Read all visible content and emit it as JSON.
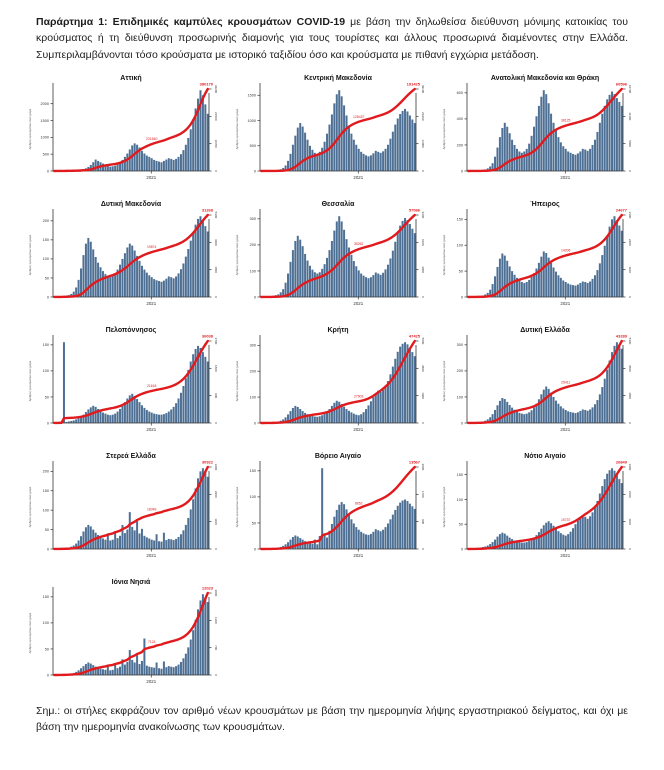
{
  "header": {
    "bold": "Παράρτημα 1:  Επιδημικές καμπύλες κρουσμάτων COVID-19",
    "text": " με βάση την δηλωθείσα διεύθυνση μόνιμης κατοικίας του κρούσματος ή τη διεύθυνση προσωρινής διαμονής για τους τουρίστες και άλλους προσωρινά διαμένοντες στην Ελλάδα.  Συμπεριλαμβάνονται τόσο κρούσματα με ιστορικό ταξιδίου όσο και κρούσματα με πιθανή εγχώρια μετάδοση."
  },
  "footnote": {
    "label": "Σημ.:",
    "text": " οι στήλες εκφράζουν τον αριθμό νέων κρουσμάτων με βάση την ημερομηνία λήψης εργαστηριακού δείγματος, και όχι με βάση την ημερομηνία ανακοίνωσης των κρουσμάτων."
  },
  "colors": {
    "bar": "#4e7095",
    "line": "#e11a1d",
    "axis": "#333333",
    "tick_text": "#333333"
  },
  "axis": {
    "x_tick": "2021",
    "y_title": "Αριθμός κρουσμάτων ανά ημέρα"
  },
  "chart_data": [
    {
      "type": "bar+line",
      "title": "Αττική",
      "xlabel": "2021",
      "ylabel": "Αριθμός κρουσμάτων ανά ημέρα",
      "total_label": "380170",
      "mid_label": "231540",
      "y_ticks": [
        0,
        500,
        1000,
        1500,
        2000
      ],
      "bars": [
        5,
        8,
        6,
        10,
        12,
        9,
        14,
        18,
        15,
        20,
        30,
        45,
        60,
        80,
        120,
        180,
        260,
        340,
        300,
        260,
        220,
        180,
        150,
        130,
        140,
        160,
        200,
        260,
        330,
        420,
        520,
        640,
        760,
        820,
        780,
        700,
        600,
        520,
        460,
        420,
        380,
        330,
        300,
        280,
        260,
        300,
        340,
        380,
        360,
        330,
        360,
        420,
        500,
        620,
        780,
        980,
        1240,
        1540,
        1860,
        2150,
        2400,
        2250,
        1980,
        1700
      ]
    },
    {
      "type": "bar+line",
      "title": "Κεντρική Μακεδονία",
      "xlabel": "2021",
      "total_label": "191425",
      "mid_label": "128437",
      "y_ticks": [
        0,
        500,
        1000,
        1500
      ],
      "bars": [
        3,
        5,
        4,
        6,
        8,
        10,
        14,
        20,
        35,
        60,
        110,
        200,
        340,
        520,
        700,
        860,
        950,
        880,
        760,
        620,
        500,
        420,
        360,
        340,
        380,
        460,
        580,
        740,
        920,
        1120,
        1340,
        1520,
        1600,
        1480,
        1300,
        1100,
        900,
        740,
        620,
        520,
        440,
        380,
        340,
        310,
        290,
        310,
        350,
        400,
        380,
        360,
        390,
        440,
        520,
        640,
        780,
        920,
        1040,
        1130,
        1190,
        1230,
        1180,
        1100,
        1020,
        950
      ]
    },
    {
      "type": "bar+line",
      "title": "Ανατολική Μακεδονία και Θράκη",
      "xlabel": "2021",
      "total_label": "60596",
      "mid_label": "38125",
      "y_ticks": [
        0,
        200,
        400,
        600
      ],
      "bars": [
        2,
        3,
        2,
        4,
        5,
        6,
        8,
        12,
        20,
        35,
        60,
        110,
        180,
        260,
        330,
        370,
        340,
        290,
        240,
        200,
        170,
        150,
        140,
        150,
        170,
        210,
        270,
        340,
        420,
        500,
        570,
        620,
        590,
        520,
        440,
        370,
        310,
        260,
        220,
        190,
        170,
        150,
        140,
        130,
        125,
        135,
        150,
        170,
        165,
        155,
        170,
        200,
        240,
        300,
        370,
        440,
        500,
        550,
        585,
        610,
        590,
        560,
        530,
        500
      ]
    },
    {
      "type": "bar+line",
      "title": "Δυτική Μακεδονία",
      "xlabel": "2021",
      "total_label": "31268",
      "mid_label": "19874",
      "y_ticks": [
        0,
        50,
        100,
        150,
        200
      ],
      "bars": [
        1,
        1,
        2,
        2,
        3,
        4,
        5,
        8,
        14,
        25,
        45,
        75,
        110,
        140,
        155,
        145,
        125,
        105,
        90,
        78,
        68,
        60,
        55,
        52,
        55,
        62,
        72,
        85,
        100,
        115,
        130,
        140,
        135,
        122,
        108,
        95,
        82,
        72,
        64,
        57,
        52,
        47,
        44,
        42,
        40,
        43,
        48,
        54,
        52,
        49,
        54,
        62,
        73,
        88,
        106,
        126,
        148,
        170,
        190,
        205,
        212,
        200,
        186,
        172
      ]
    },
    {
      "type": "bar+line",
      "title": "Θεσσαλία",
      "xlabel": "2021",
      "total_label": "57086",
      "mid_label": "35262",
      "y_ticks": [
        0,
        100,
        200,
        300
      ],
      "bars": [
        1,
        2,
        2,
        3,
        4,
        5,
        7,
        10,
        18,
        30,
        55,
        90,
        135,
        180,
        215,
        235,
        220,
        195,
        165,
        140,
        120,
        105,
        95,
        90,
        95,
        108,
        126,
        150,
        180,
        215,
        255,
        290,
        310,
        290,
        258,
        222,
        190,
        162,
        138,
        118,
        102,
        90,
        82,
        76,
        72,
        76,
        84,
        94,
        90,
        85,
        93,
        106,
        124,
        148,
        178,
        212,
        246,
        274,
        292,
        303,
        295,
        280,
        262,
        245
      ]
    },
    {
      "type": "bar+line",
      "title": "Ήπειρος",
      "xlabel": "2021",
      "total_label": "24677",
      "mid_label": "14206",
      "y_ticks": [
        0,
        50,
        100,
        150
      ],
      "bars": [
        0,
        1,
        1,
        1,
        2,
        2,
        3,
        5,
        8,
        14,
        25,
        40,
        58,
        74,
        84,
        80,
        70,
        59,
        50,
        43,
        37,
        32,
        29,
        27,
        29,
        33,
        39,
        46,
        55,
        66,
        78,
        88,
        85,
        76,
        66,
        57,
        49,
        42,
        37,
        32,
        29,
        26,
        24,
        23,
        22,
        24,
        27,
        30,
        29,
        27,
        30,
        35,
        42,
        52,
        65,
        81,
        99,
        118,
        136,
        150,
        156,
        148,
        138,
        128
      ]
    },
    {
      "type": "bar+line",
      "title": "Πελοπόννησος",
      "xlabel": "2021",
      "total_label": "36038",
      "mid_label": "21618",
      "y_ticks": [
        0,
        50,
        100,
        150
      ],
      "bars": [
        1,
        1,
        2,
        3,
        155,
        2,
        3,
        4,
        5,
        7,
        9,
        12,
        16,
        21,
        26,
        30,
        33,
        31,
        27,
        23,
        20,
        18,
        16,
        15,
        16,
        18,
        22,
        27,
        33,
        40,
        47,
        53,
        56,
        52,
        46,
        40,
        34,
        29,
        25,
        22,
        20,
        18,
        17,
        16,
        16,
        17,
        19,
        22,
        26,
        31,
        38,
        47,
        58,
        71,
        86,
        102,
        118,
        132,
        142,
        148,
        144,
        136,
        127,
        118
      ]
    },
    {
      "type": "bar+line",
      "title": "Κρήτη",
      "xlabel": "2021",
      "total_label": "47425",
      "mid_label": "27903",
      "y_ticks": [
        0,
        100,
        200,
        300
      ],
      "bars": [
        0,
        1,
        1,
        2,
        2,
        3,
        4,
        6,
        9,
        14,
        22,
        33,
        46,
        58,
        66,
        62,
        54,
        46,
        39,
        34,
        30,
        27,
        25,
        24,
        26,
        30,
        36,
        44,
        54,
        66,
        78,
        86,
        82,
        73,
        63,
        54,
        47,
        41,
        36,
        32,
        30,
        34,
        42,
        54,
        68,
        84,
        100,
        115,
        125,
        120,
        128,
        142,
        162,
        188,
        218,
        248,
        275,
        295,
        306,
        312,
        304,
        290,
        274,
        258
      ]
    },
    {
      "type": "bar+line",
      "title": "Δυτική Ελλάδα",
      "xlabel": "2021",
      "total_label": "43289",
      "mid_label": "25411",
      "y_ticks": [
        0,
        100,
        200,
        300
      ],
      "bars": [
        1,
        1,
        2,
        2,
        3,
        4,
        6,
        9,
        14,
        22,
        34,
        50,
        68,
        85,
        96,
        92,
        81,
        69,
        59,
        51,
        44,
        39,
        36,
        34,
        36,
        41,
        49,
        60,
        74,
        91,
        110,
        128,
        140,
        131,
        116,
        100,
        86,
        74,
        64,
        56,
        50,
        45,
        42,
        40,
        38,
        41,
        46,
        52,
        50,
        47,
        52,
        60,
        72,
        88,
        110,
        138,
        170,
        205,
        240,
        272,
        296,
        310,
        300,
        285
      ]
    },
    {
      "type": "bar+line",
      "title": "Στερεά Ελλάδα",
      "xlabel": "2021",
      "total_label": "30922",
      "mid_label": "18349",
      "y_ticks": [
        0,
        50,
        100,
        150,
        200
      ],
      "bars": [
        1,
        1,
        1,
        2,
        2,
        3,
        4,
        6,
        9,
        14,
        22,
        33,
        45,
        56,
        62,
        58,
        50,
        42,
        36,
        31,
        27,
        24,
        40,
        22,
        24,
        46,
        28,
        34,
        62,
        41,
        50,
        95,
        57,
        48,
        72,
        40,
        52,
        34,
        30,
        27,
        24,
        22,
        38,
        20,
        19,
        42,
        23,
        26,
        25,
        23,
        26,
        31,
        38,
        48,
        62,
        80,
        102,
        128,
        156,
        182,
        200,
        208,
        198,
        186
      ]
    },
    {
      "type": "bar+line",
      "title": "Βόρειο Αιγαίο",
      "xlabel": "2021",
      "total_label": "13567",
      "mid_label": "8652",
      "y_ticks": [
        0,
        50,
        100,
        150
      ],
      "bars": [
        0,
        0,
        1,
        1,
        1,
        2,
        2,
        3,
        4,
        6,
        9,
        13,
        18,
        23,
        26,
        24,
        21,
        18,
        15,
        13,
        11,
        10,
        18,
        9,
        25,
        155,
        30,
        22,
        35,
        48,
        62,
        75,
        85,
        90,
        86,
        76,
        66,
        57,
        49,
        42,
        37,
        33,
        30,
        28,
        27,
        29,
        33,
        38,
        36,
        34,
        37,
        42,
        49,
        57,
        66,
        75,
        83,
        89,
        93,
        95,
        92,
        87,
        82,
        77
      ]
    },
    {
      "type": "bar+line",
      "title": "Νότιο Αιγαίο",
      "xlabel": "2021",
      "total_label": "26849",
      "mid_label": "15737",
      "y_ticks": [
        0,
        50,
        100,
        150
      ],
      "bars": [
        0,
        1,
        1,
        2,
        2,
        3,
        4,
        5,
        7,
        10,
        14,
        19,
        25,
        30,
        33,
        31,
        27,
        23,
        20,
        17,
        15,
        14,
        13,
        13,
        14,
        16,
        19,
        23,
        28,
        34,
        41,
        48,
        53,
        56,
        52,
        47,
        41,
        36,
        32,
        29,
        27,
        30,
        35,
        42,
        50,
        58,
        64,
        68,
        65,
        61,
        66,
        74,
        84,
        97,
        112,
        127,
        141,
        152,
        159,
        163,
        158,
        150,
        141,
        133
      ]
    },
    {
      "type": "bar+line",
      "title": "Ιόνια Νησιά",
      "xlabel": "2021",
      "total_label": "12023",
      "mid_label": "7124",
      "y_ticks": [
        0,
        50,
        100,
        150
      ],
      "bars": [
        0,
        0,
        1,
        1,
        1,
        2,
        2,
        3,
        4,
        6,
        9,
        13,
        17,
        21,
        24,
        22,
        19,
        16,
        14,
        12,
        11,
        10,
        18,
        9,
        10,
        22,
        13,
        16,
        30,
        20,
        25,
        48,
        29,
        24,
        38,
        21,
        27,
        70,
        18,
        16,
        15,
        14,
        24,
        13,
        12,
        26,
        15,
        17,
        16,
        15,
        17,
        20,
        25,
        32,
        41,
        53,
        68,
        86,
        106,
        126,
        143,
        155,
        149,
        140
      ]
    }
  ]
}
